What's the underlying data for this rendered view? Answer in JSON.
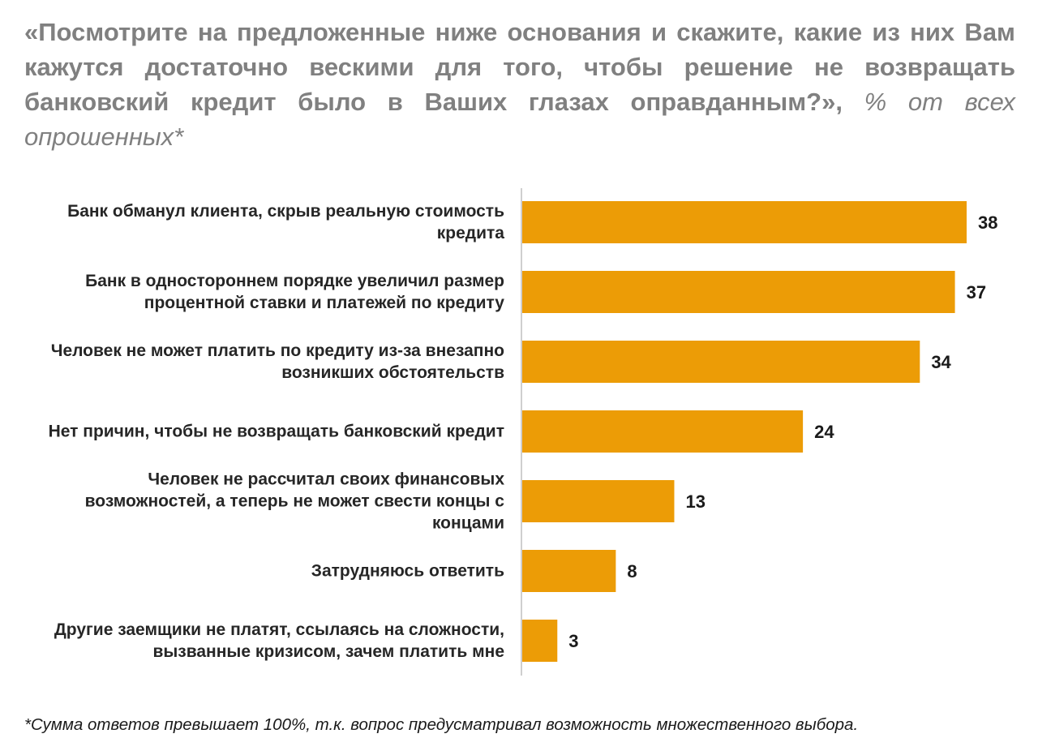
{
  "title": {
    "question": "«Посмотрите на предложенные ниже основания и скажите, какие из них Вам кажутся достаточно вескими для того, чтобы решение не возвращать банковский кредит было в Ваших глазах оправданным?»,",
    "unit": "% от всех опрошенных*"
  },
  "footnote": "*Сумма ответов превышает 100%, т.к. вопрос предусматривал возможность множественного выбора.",
  "colors": {
    "bar": "#EC9C06",
    "axis": "#BFBFBF",
    "title": "#808080",
    "label": "#262626"
  },
  "chart_data": {
    "type": "bar",
    "orientation": "horizontal",
    "title": "«Посмотрите на предложенные ниже основания и скажите, какие из них Вам кажутся достаточно вескими для того, чтобы решение не возвращать банковский кредит было в Ваших глазах оправданным?», % от всех опрошенных*",
    "categories": [
      "Банк обманул клиента, скрыв реальную стоимость кредита",
      "Банк в одностороннем порядке увеличил размер процентной ставки и платежей по кредиту",
      "Человек не может платить по кредиту из-за внезапно возникших обстоятельств",
      "Нет причин, чтобы не возвращать банковский кредит",
      "Человек не рассчитал своих финансовых возможностей, а теперь не может свести концы с концами",
      "Затрудняюсь ответить",
      "Другие заемщики не платят, ссылаясь на сложности, вызванные кризисом, зачем платить мне"
    ],
    "values": [
      38,
      37,
      34,
      24,
      13,
      8,
      3
    ],
    "data_labels": [
      "38",
      "37",
      "34",
      "24",
      "13",
      "8",
      "3"
    ],
    "xlim": [
      0,
      38
    ],
    "grid": false,
    "legend": "none"
  }
}
